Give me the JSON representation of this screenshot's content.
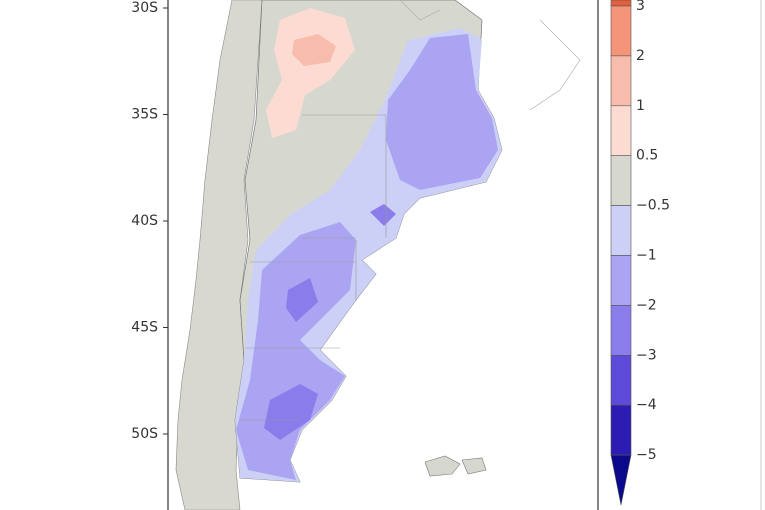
{
  "map": {
    "lat_labels": [
      "30S",
      "35S",
      "40S",
      "45S",
      "50S"
    ],
    "colorbar": {
      "labels": [
        "3",
        "2",
        "1",
        "0.5",
        "−0.5",
        "−1",
        "−2",
        "−3",
        "−4",
        "−5"
      ],
      "colors": [
        "#e0603c",
        "#f49478",
        "#f8bcac",
        "#fcdcd2",
        "#d6d8d0",
        "#cdd0f6",
        "#aba4f2",
        "#8a7cea",
        "#5e4ad8",
        "#2c1cb4",
        "#0c0a8c"
      ]
    }
  }
}
